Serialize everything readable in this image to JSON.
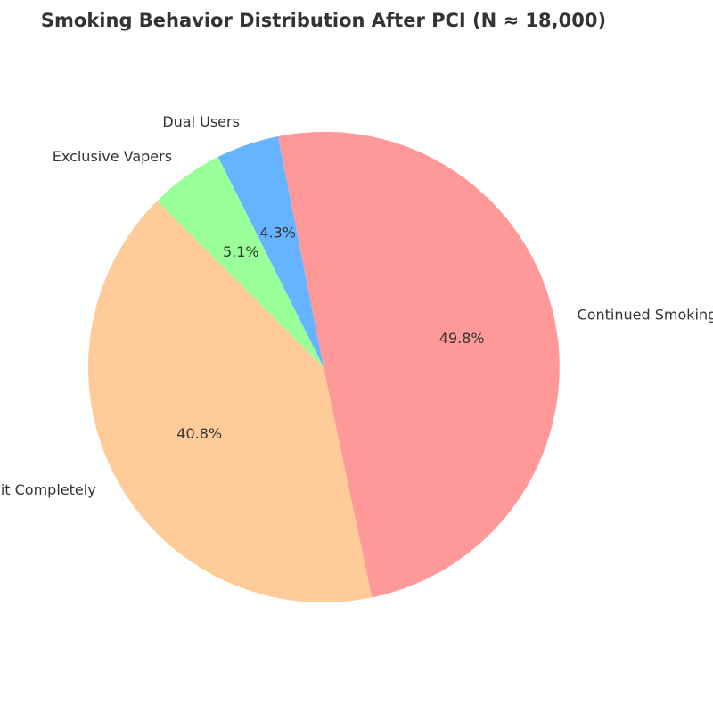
{
  "chart_data": {
    "type": "pie",
    "title": "Smoking Behavior Distribution After PCI (N ≈ 18,000)",
    "slices": [
      {
        "label": "Quit Completely",
        "value": 40.8,
        "pct_label": "40.8%",
        "color": "#ffcc99"
      },
      {
        "label": "Continued Smoking",
        "value": 49.8,
        "pct_label": "49.8%",
        "color": "#ff9999"
      },
      {
        "label": "Dual Users",
        "value": 4.3,
        "pct_label": "4.3%",
        "color": "#66b3ff"
      },
      {
        "label": "Exclusive Vapers",
        "value": 5.1,
        "pct_label": "5.1%",
        "color": "#99ff99"
      }
    ],
    "start_angle_deg": 135,
    "direction": "counterclockwise",
    "legend": "none"
  }
}
